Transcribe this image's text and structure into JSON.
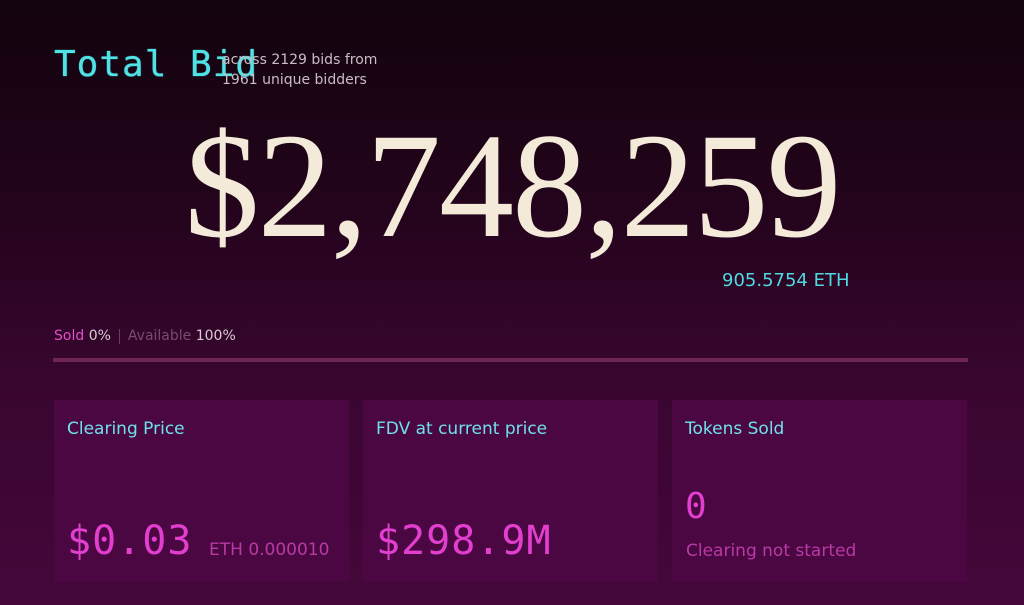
{
  "header": {
    "title": "Total Bid",
    "subtitle": "across 2129 bids from 1961 unique bidders"
  },
  "total": {
    "amount": "$2,748,259",
    "eth": "905.5754 ETH"
  },
  "progress": {
    "sold_label": "Sold",
    "sold_value": "0%",
    "available_label": "Available",
    "available_value": "100%"
  },
  "cards": [
    {
      "title": "Clearing Price",
      "value": "$0.03",
      "note": "ETH 0.000010"
    },
    {
      "title": "FDV at current price",
      "value": "$298.9M"
    },
    {
      "title": "Tokens Sold",
      "value": "0",
      "note": "Clearing not started"
    }
  ]
}
